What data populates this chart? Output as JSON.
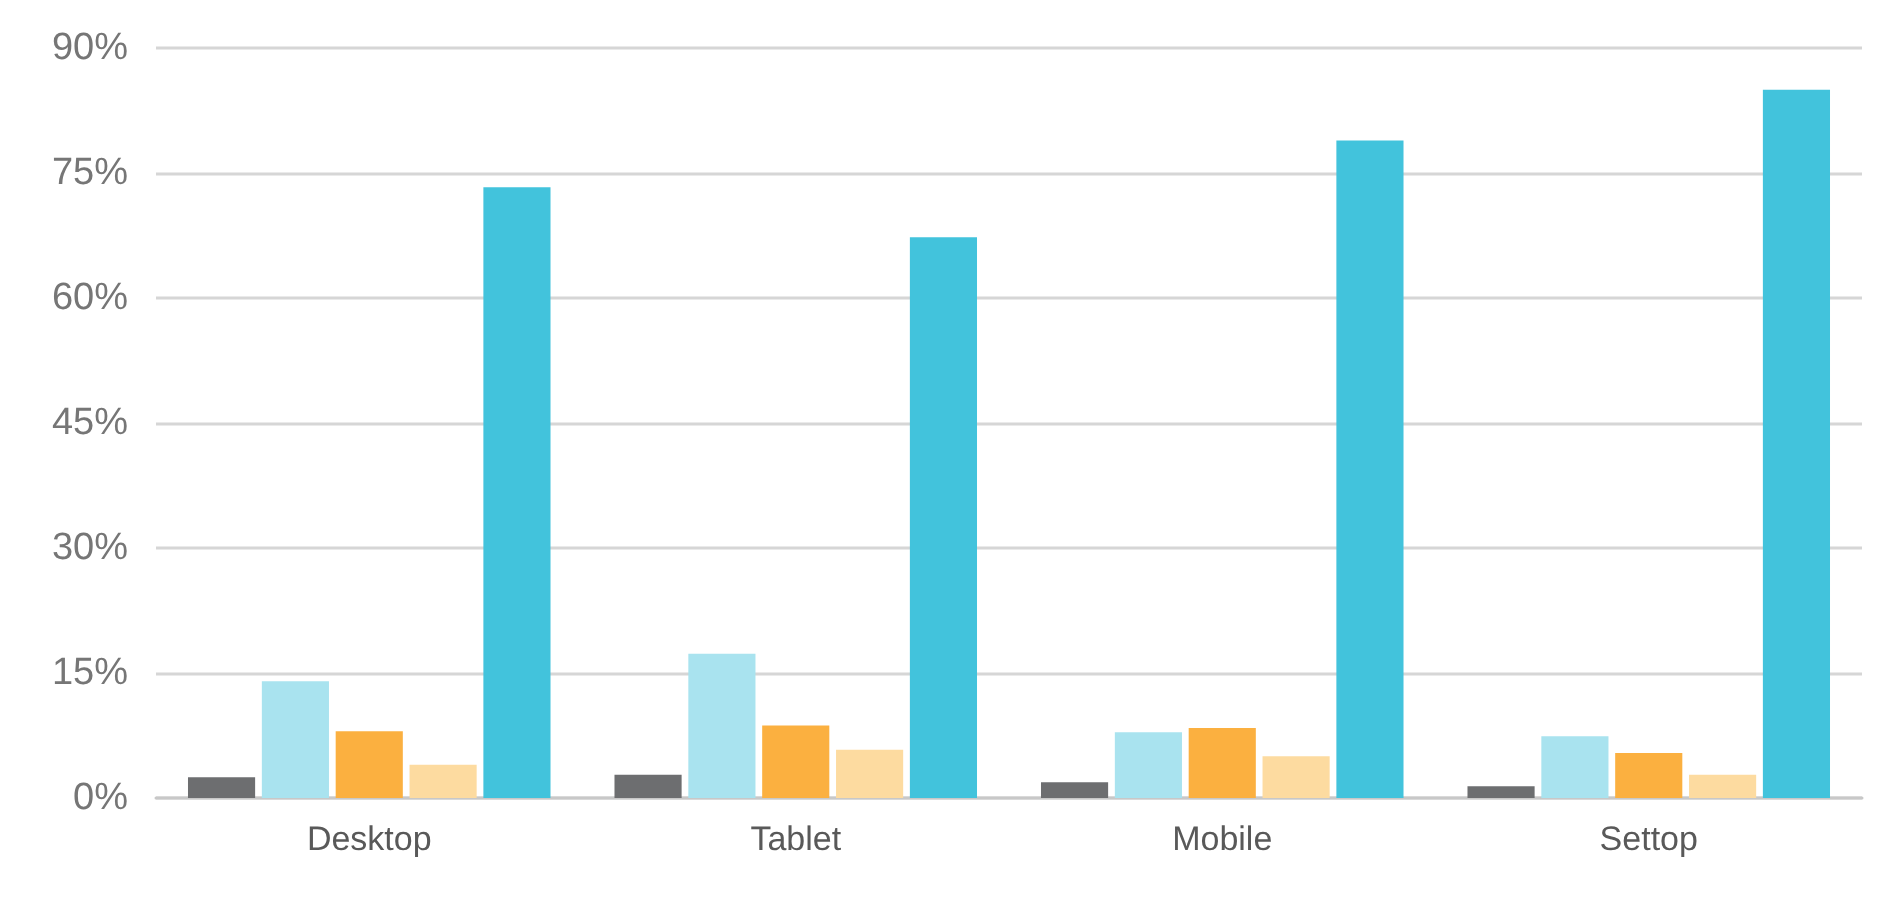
{
  "chart_data": {
    "type": "bar",
    "categories": [
      "Desktop",
      "Tablet",
      "Mobile",
      "Settop"
    ],
    "series": [
      {
        "color": "#6d6e70",
        "values": [
          2.5,
          2.8,
          1.9,
          1.4
        ]
      },
      {
        "color": "#a9e3ef",
        "values": [
          14,
          17.3,
          7.9,
          7.4
        ]
      },
      {
        "color": "#fbb040",
        "values": [
          8,
          8.7,
          8.4,
          5.4
        ]
      },
      {
        "color": "#fddba0",
        "values": [
          4,
          5.8,
          5,
          2.8
        ]
      },
      {
        "color": "#42c3dc",
        "values": [
          73.3,
          67.3,
          78.9,
          85
        ]
      }
    ],
    "ylim": [
      0,
      90
    ],
    "yticks": [
      {
        "value": 0,
        "label": "0%"
      },
      {
        "value": 15,
        "label": "15%"
      },
      {
        "value": 30,
        "label": "30%"
      },
      {
        "value": 45,
        "label": "45%"
      },
      {
        "value": 60,
        "label": "60%"
      },
      {
        "value": 75,
        "label": "75%"
      },
      {
        "value": 90,
        "label": "90%"
      }
    ],
    "grid": "y"
  }
}
